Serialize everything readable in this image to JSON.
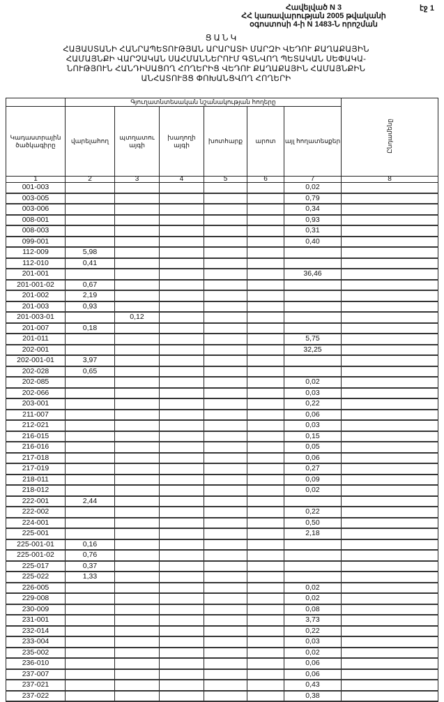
{
  "page_label": "էջ 1",
  "annex": [
    "Հավելված N 3",
    "ՀՀ կառավարության 2005 թվականի",
    "օգոստոսի 4-ի N 1483-Ն որոշման"
  ],
  "list_heading": "ՑԱՆԿ",
  "title": [
    "ՀԱՅԱՍՏԱՆԻ ՀԱՆՐԱՊԵՏՈՒԹՅԱՆ ԱՐԱՐԱՏԻ ՄԱՐԶԻ ՎԵԴՈՒ ՔԱՂԱՔԱՅԻՆ",
    "ՀԱՄԱՅՆՔԻ ՎԱՐՉԱԿԱՆ ՍԱՀՄԱՆՆԵՐՈՒՄ ԳՏՆՎՈՂ ՊԵՏԱԿԱՆ ՍԵՓԱԿԱ-",
    "ՆՈՒԹՅՈՒՆ ՀԱՆԴԻՍԱՑՈՂ ՀՈՂԵՐԻՑ ՎԵԴՈՒ ՔԱՂԱՔԱՅԻՆ ՀԱՄԱՅՆՔԻՆ",
    "ԱՆՀԱՏՈՒՅՑ ՓՈԽԱՆՑՎՈՂ ՀՈՂԵՐԻ"
  ],
  "table": {
    "group_header": "Գյուղատնտեսական նշանակության հողերը",
    "columns": [
      "Կադաստրային ծածկագիրը",
      "վարելահող",
      "պտղատու այգի",
      "խաղողի այգի",
      "խոտհարք",
      "արոտ",
      "այլ հողատեսքեր",
      "Ընդամենը"
    ],
    "column_numbers": [
      "1",
      "2",
      "3",
      "4",
      "5",
      "6",
      "7",
      "8"
    ],
    "rows": [
      [
        "001-003",
        "",
        "",
        "",
        "",
        "",
        "0,02",
        ""
      ],
      [
        "003-005",
        "",
        "",
        "",
        "",
        "",
        "0,79",
        ""
      ],
      [
        "003-006",
        "",
        "",
        "",
        "",
        "",
        "0,34",
        ""
      ],
      [
        "008-001",
        "",
        "",
        "",
        "",
        "",
        "0,93",
        ""
      ],
      [
        "008-003",
        "",
        "",
        "",
        "",
        "",
        "0,31",
        ""
      ],
      [
        "099-001",
        "",
        "",
        "",
        "",
        "",
        "0,40",
        ""
      ],
      [
        "112-009",
        "5,98",
        "",
        "",
        "",
        "",
        "",
        ""
      ],
      [
        "112-010",
        "0,41",
        "",
        "",
        "",
        "",
        "",
        ""
      ],
      [
        "201-001",
        "",
        "",
        "",
        "",
        "",
        "36,46",
        ""
      ],
      [
        "201-001-02",
        "0,67",
        "",
        "",
        "",
        "",
        "",
        ""
      ],
      [
        "201-002",
        "2,19",
        "",
        "",
        "",
        "",
        "",
        ""
      ],
      [
        "201-003",
        "0,93",
        "",
        "",
        "",
        "",
        "",
        ""
      ],
      [
        "201-003-01",
        "",
        "0,12",
        "",
        "",
        "",
        "",
        ""
      ],
      [
        "201-007",
        "0,18",
        "",
        "",
        "",
        "",
        "",
        ""
      ],
      [
        "201-011",
        "",
        "",
        "",
        "",
        "",
        "5,75",
        ""
      ],
      [
        "202-001",
        "",
        "",
        "",
        "",
        "",
        "32,25",
        ""
      ],
      [
        "202-001-01",
        "3,97",
        "",
        "",
        "",
        "",
        "",
        ""
      ],
      [
        "202-028",
        "0,65",
        "",
        "",
        "",
        "",
        "",
        ""
      ],
      [
        "202-085",
        "",
        "",
        "",
        "",
        "",
        "0,02",
        ""
      ],
      [
        "202-066",
        "",
        "",
        "",
        "",
        "",
        "0,03",
        ""
      ],
      [
        "203-001",
        "",
        "",
        "",
        "",
        "",
        "0,22",
        ""
      ],
      [
        "211-007",
        "",
        "",
        "",
        "",
        "",
        "0,06",
        ""
      ],
      [
        "212-021",
        "",
        "",
        "",
        "",
        "",
        "0,03",
        ""
      ],
      [
        "216-015",
        "",
        "",
        "",
        "",
        "",
        "0,15",
        ""
      ],
      [
        "216-016",
        "",
        "",
        "",
        "",
        "",
        "0,05",
        ""
      ],
      [
        "217-018",
        "",
        "",
        "",
        "",
        "",
        "0,06",
        ""
      ],
      [
        "217-019",
        "",
        "",
        "",
        "",
        "",
        "0,27",
        ""
      ],
      [
        "218-011",
        "",
        "",
        "",
        "",
        "",
        "0,09",
        ""
      ],
      [
        "218-012",
        "",
        "",
        "",
        "",
        "",
        "0,02",
        ""
      ],
      [
        "222-001",
        "2,44",
        "",
        "",
        "",
        "",
        "",
        ""
      ],
      [
        "222-002",
        "",
        "",
        "",
        "",
        "",
        "0,22",
        ""
      ],
      [
        "224-001",
        "",
        "",
        "",
        "",
        "",
        "0,50",
        ""
      ],
      [
        "225-001",
        "",
        "",
        "",
        "",
        "",
        "2,18",
        ""
      ],
      [
        "225-001-01",
        "0,16",
        "",
        "",
        "",
        "",
        "",
        ""
      ],
      [
        "225-001-02",
        "0,76",
        "",
        "",
        "",
        "",
        "",
        ""
      ],
      [
        "225-017",
        "0,37",
        "",
        "",
        "",
        "",
        "",
        ""
      ],
      [
        "225-022",
        "1,33",
        "",
        "",
        "",
        "",
        "",
        ""
      ],
      [
        "226-005",
        "",
        "",
        "",
        "",
        "",
        "0,02",
        ""
      ],
      [
        "229-008",
        "",
        "",
        "",
        "",
        "",
        "0,02",
        ""
      ],
      [
        "230-009",
        "",
        "",
        "",
        "",
        "",
        "0,08",
        ""
      ],
      [
        "231-001",
        "",
        "",
        "",
        "",
        "",
        "3,73",
        ""
      ],
      [
        "232-014",
        "",
        "",
        "",
        "",
        "",
        "0,22",
        ""
      ],
      [
        "233-004",
        "",
        "",
        "",
        "",
        "",
        "0,03",
        ""
      ],
      [
        "235-002",
        "",
        "",
        "",
        "",
        "",
        "0,02",
        ""
      ],
      [
        "236-010",
        "",
        "",
        "",
        "",
        "",
        "0,06",
        ""
      ],
      [
        "237-007",
        "",
        "",
        "",
        "",
        "",
        "0,06",
        ""
      ],
      [
        "237-021",
        "",
        "",
        "",
        "",
        "",
        "0,43",
        ""
      ],
      [
        "237-022",
        "",
        "",
        "",
        "",
        "",
        "0,38",
        ""
      ]
    ]
  }
}
